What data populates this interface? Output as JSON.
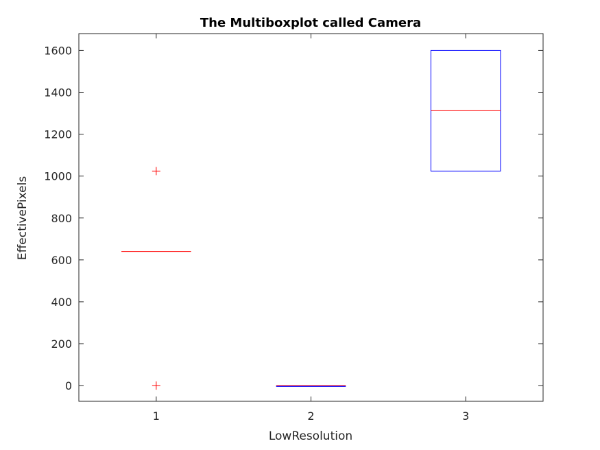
{
  "chart_data": {
    "type": "boxplot",
    "title": "The Multiboxplot called Camera",
    "xlabel": "LowResolution",
    "ylabel": "EffectivePixels",
    "categories": [
      "1",
      "2",
      "3"
    ],
    "xlim": [
      0.5,
      3.5
    ],
    "ylim": [
      -75,
      1680
    ],
    "yticks": [
      0,
      200,
      400,
      600,
      800,
      1000,
      1200,
      1400,
      1600
    ],
    "boxes": [
      {
        "category": "1",
        "q1": 640,
        "median": 640,
        "q3": 640,
        "whisker_low": 640,
        "whisker_high": 640,
        "outliers": [
          1024,
          0
        ]
      },
      {
        "category": "2",
        "q1": 0,
        "median": 0,
        "q3": 0,
        "whisker_low": 0,
        "whisker_high": 0,
        "outliers": []
      },
      {
        "category": "3",
        "q1": 1024,
        "median": 1312,
        "q3": 1600,
        "whisker_low": 1024,
        "whisker_high": 1600,
        "outliers": []
      }
    ],
    "colors": {
      "box": "#0000ff",
      "median": "#ff0000",
      "outlier": "#ff0000",
      "axes": "#262626"
    },
    "grid": false,
    "legend": "none"
  }
}
